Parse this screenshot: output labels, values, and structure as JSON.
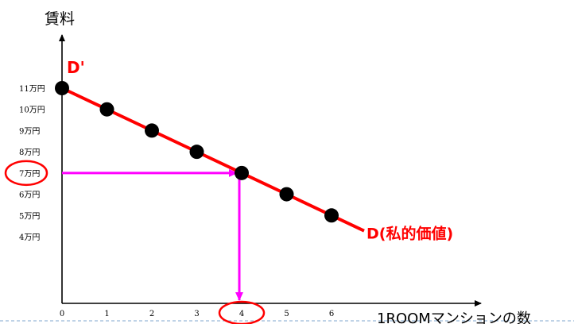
{
  "chart_data": {
    "type": "line",
    "ylabel": "賃料",
    "xlabel": "1ROOMマンションの数",
    "x_ticks": [
      "0",
      "1",
      "2",
      "3",
      "4",
      "5",
      "6"
    ],
    "y_ticks": [
      {
        "value": 11,
        "label": "11万円"
      },
      {
        "value": 10,
        "label": "10万円"
      },
      {
        "value": 9,
        "label": "9万円"
      },
      {
        "value": 8,
        "label": "8万円"
      },
      {
        "value": 7,
        "label": "7万円"
      },
      {
        "value": 6,
        "label": "6万円"
      },
      {
        "value": 5,
        "label": "5万円"
      },
      {
        "value": 4,
        "label": "4万円"
      }
    ],
    "series": [
      {
        "name": "D(私的価値)",
        "x": [
          0,
          1,
          2,
          3,
          4,
          5,
          6
        ],
        "y": [
          11,
          10,
          9,
          8,
          7,
          6,
          5
        ],
        "color": "#ff0000"
      }
    ],
    "annotations": {
      "line_start_label": "D'",
      "line_end_label": "D(私的価値)",
      "highlight_x": 4,
      "highlight_y": 7,
      "arrow_color": "#ff00ff",
      "circle_color": "#ff0000"
    },
    "xlim": [
      0,
      7.8
    ],
    "ylim": [
      0,
      11.6
    ]
  }
}
